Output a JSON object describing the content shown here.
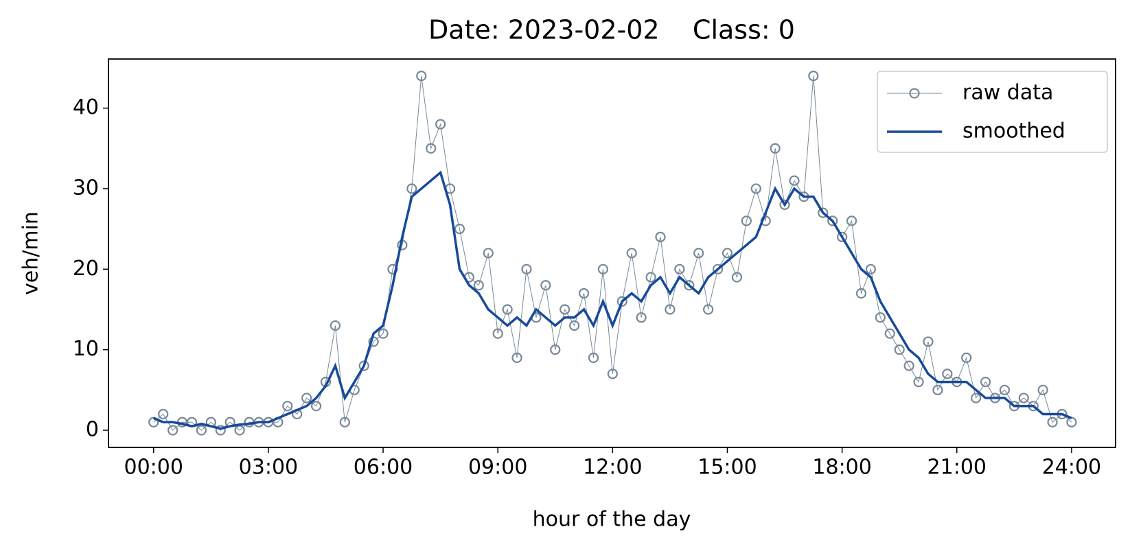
{
  "chart_data": {
    "type": "line",
    "title": "Date: 2023-02-02    Class: 0",
    "xlabel": "hour of the day",
    "ylabel": "veh/min",
    "x": [
      0,
      0.25,
      0.5,
      0.75,
      1,
      1.25,
      1.5,
      1.75,
      2,
      2.25,
      2.5,
      2.75,
      3,
      3.25,
      3.5,
      3.75,
      4,
      4.25,
      4.5,
      4.75,
      5,
      5.25,
      5.5,
      5.75,
      6,
      6.25,
      6.5,
      6.75,
      7,
      7.25,
      7.5,
      7.75,
      8,
      8.25,
      8.5,
      8.75,
      9,
      9.25,
      9.5,
      9.75,
      10,
      10.25,
      10.5,
      10.75,
      11,
      11.25,
      11.5,
      11.75,
      12,
      12.25,
      12.5,
      12.75,
      13,
      13.25,
      13.5,
      13.75,
      14,
      14.25,
      14.5,
      14.75,
      15,
      15.25,
      15.5,
      15.75,
      16,
      16.25,
      16.5,
      16.75,
      17,
      17.25,
      17.5,
      17.75,
      18,
      18.25,
      18.5,
      18.75,
      19,
      19.25,
      19.5,
      19.75,
      20,
      20.25,
      20.5,
      20.75,
      21,
      21.25,
      21.5,
      21.75,
      22,
      22.25,
      22.5,
      22.75,
      23,
      23.25,
      23.5,
      23.75,
      24
    ],
    "series": [
      {
        "name": "raw data",
        "color": "#778899",
        "marker": "open-circle",
        "values": [
          1,
          2,
          0,
          1,
          1,
          0,
          1,
          0,
          1,
          0,
          1,
          1,
          1,
          1,
          3,
          2,
          4,
          3,
          6,
          13,
          1,
          5,
          8,
          11,
          12,
          20,
          23,
          30,
          44,
          35,
          38,
          30,
          25,
          19,
          18,
          22,
          12,
          15,
          9,
          20,
          14,
          18,
          10,
          15,
          13,
          17,
          9,
          20,
          7,
          16,
          22,
          14,
          19,
          24,
          15,
          20,
          18,
          22,
          15,
          20,
          22,
          19,
          26,
          30,
          26,
          35,
          28,
          31,
          29,
          44,
          27,
          26,
          24,
          26,
          17,
          20,
          14,
          12,
          10,
          8,
          6,
          11,
          5,
          7,
          6,
          9,
          4,
          6,
          4,
          5,
          3,
          4,
          3,
          5,
          1,
          2,
          1
        ]
      },
      {
        "name": "smoothed",
        "color": "#174a9b",
        "values": [
          1.5,
          1,
          1,
          0.8,
          0.5,
          0.8,
          0.5,
          0.2,
          0.5,
          0.7,
          0.8,
          1,
          1,
          1.5,
          2,
          2.5,
          3,
          4,
          5.5,
          8,
          4,
          6,
          8,
          12,
          13,
          18,
          24,
          29,
          30,
          31,
          32,
          28,
          20,
          18,
          17,
          15,
          14,
          13,
          14,
          13,
          15,
          14,
          13,
          14,
          14,
          15,
          13,
          16,
          13,
          16,
          17,
          16,
          18,
          19,
          17,
          19,
          18,
          17,
          19,
          20,
          21,
          22,
          23,
          24,
          27,
          30,
          28,
          30,
          29,
          29,
          27,
          26,
          24,
          22,
          20,
          19,
          16,
          14,
          12,
          10,
          9,
          7,
          6,
          6,
          6,
          6,
          5,
          4,
          4,
          4,
          3,
          3,
          3,
          2,
          2,
          2,
          1.5
        ]
      }
    ],
    "xlim": [
      -1.18,
      25.15
    ],
    "ylim": [
      -2.13,
      46.1
    ],
    "xticks": [
      {
        "value": 0,
        "label": "00:00"
      },
      {
        "value": 3,
        "label": "03:00"
      },
      {
        "value": 6,
        "label": "06:00"
      },
      {
        "value": 9,
        "label": "09:00"
      },
      {
        "value": 12,
        "label": "12:00"
      },
      {
        "value": 15,
        "label": "15:00"
      },
      {
        "value": 18,
        "label": "18:00"
      },
      {
        "value": 21,
        "label": "21:00"
      },
      {
        "value": 24,
        "label": "24:00"
      }
    ],
    "yticks": [
      0,
      10,
      20,
      30,
      40
    ],
    "legend": "upper right"
  }
}
